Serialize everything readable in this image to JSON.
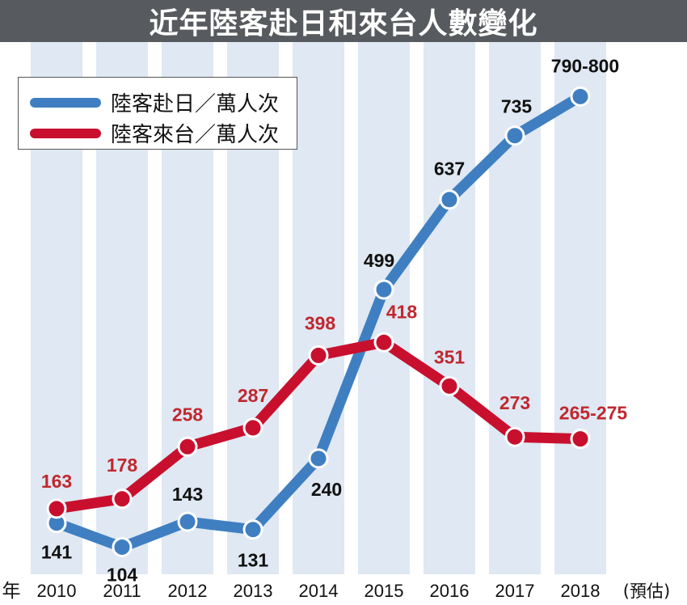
{
  "title": "近年陸客赴日和來台人數變化",
  "legend": [
    {
      "label": "陸客赴日／萬人次",
      "color": "#3f7fc1"
    },
    {
      "label": "陸客來台／萬人次",
      "color": "#c8102e"
    }
  ],
  "colors": {
    "blue_series": "#3f7fc1",
    "red_series": "#c8102e",
    "blue_label": "#111111",
    "red_label": "#c0282e",
    "stripe": "#dfe8f3",
    "title_bar": "#575a5e"
  },
  "chart_data": {
    "type": "line",
    "x_axis_prefix": "年",
    "categories": [
      "2010",
      "2011",
      "2012",
      "2013",
      "2014",
      "2015",
      "2016",
      "2017",
      "2018"
    ],
    "x_axis_suffix": "(預估)",
    "ylim": [
      50,
      850
    ],
    "grid": false,
    "legend_position": "top-left",
    "series": [
      {
        "name": "陸客赴日／萬人次",
        "values": [
          141,
          104,
          143,
          131,
          240,
          499,
          637,
          735,
          795
        ],
        "labels": [
          "141",
          "104",
          "143",
          "131",
          "240",
          "499",
          "637",
          "735",
          "790-800"
        ]
      },
      {
        "name": "陸客來台／萬人次",
        "values": [
          163,
          178,
          258,
          287,
          398,
          418,
          351,
          273,
          270
        ],
        "labels": [
          "163",
          "178",
          "258",
          "287",
          "398",
          "418",
          "351",
          "273",
          "265-275"
        ]
      }
    ]
  }
}
